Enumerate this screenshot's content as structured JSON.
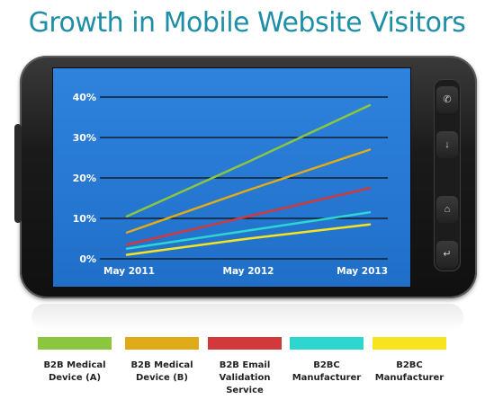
{
  "page": {
    "title": "Growth in Mobile Website Visitors"
  },
  "chart_data": {
    "type": "line",
    "title": "Growth in Mobile Website Visitors",
    "x": [
      "May 2011",
      "May 2012",
      "May 2013"
    ],
    "y_ticks": [
      "40%",
      "30%",
      "20%",
      "10%",
      "0%"
    ],
    "ylim": [
      0,
      40
    ],
    "grid": true,
    "legend_position": "bottom",
    "series": [
      {
        "name": "B2B Medical Device (A)",
        "color": "#8cc63f",
        "values": [
          10.5,
          24,
          38
        ]
      },
      {
        "name": "B2B Medical Device (B)",
        "color": "#e0ab18",
        "values": [
          6.5,
          17,
          27
        ]
      },
      {
        "name": "B2B Email Validation Service",
        "color": "#d2393a",
        "values": [
          3.5,
          10.5,
          17.5
        ]
      },
      {
        "name": "B2BC Manufacturer",
        "color": "#2ed6d0",
        "values": [
          2.5,
          7,
          11.5
        ]
      },
      {
        "name": "B2BC Manufacturer",
        "color": "#f7e31e",
        "values": [
          1,
          5,
          8.5
        ]
      }
    ]
  },
  "legend": {
    "items": [
      {
        "line1": "B2B Medical",
        "line2": "Device (A)",
        "line3": "",
        "color": "#8cc63f"
      },
      {
        "line1": "B2B Medical",
        "line2": "Device (B)",
        "line3": "",
        "color": "#e0ab18"
      },
      {
        "line1": "B2B Email",
        "line2": "Validation",
        "line3": "Service",
        "color": "#d2393a"
      },
      {
        "line1": "B2BC",
        "line2": "Manufacturer",
        "line3": "",
        "color": "#2ed6d0"
      },
      {
        "line1": "B2BC",
        "line2": "Manufacturer",
        "line3": "",
        "color": "#f7e31e"
      }
    ]
  },
  "phone": {
    "button_icons": [
      "phone-icon",
      "arrow-icon",
      "home-icon",
      "back-icon"
    ]
  }
}
